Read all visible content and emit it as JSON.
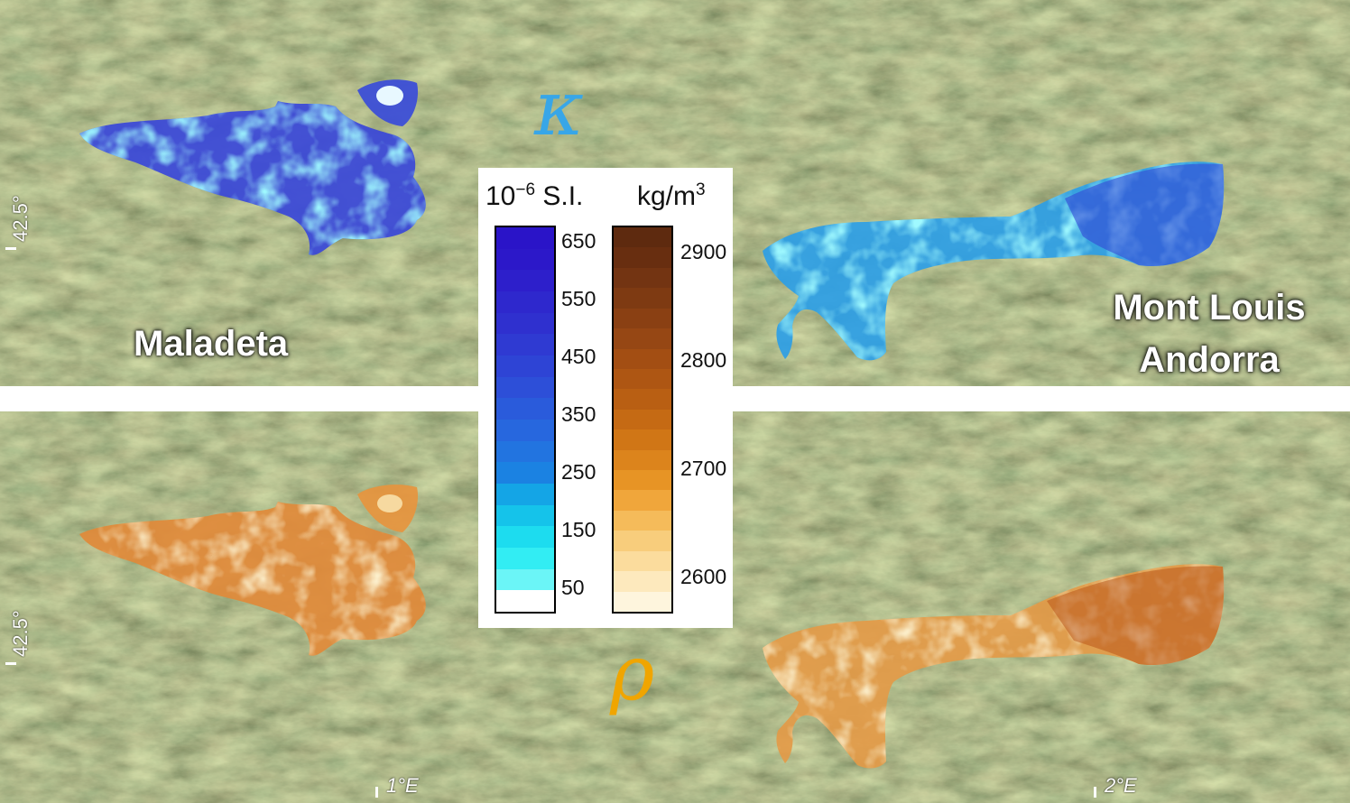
{
  "labels": {
    "maladeta": "Maladeta",
    "mont_louis_line1": "Mont Louis",
    "mont_louis_line2": "Andorra",
    "kappa": "κ",
    "rho": "ρ",
    "lat_top": "42.5°",
    "lat_bottom": "42.5°",
    "lon_1": "1°E",
    "lon_2": "2°E"
  },
  "legend": {
    "kappa_unit_base": "10",
    "kappa_unit_exp": "−6",
    "kappa_unit_suffix": " S.I.",
    "rho_unit_base": "kg/m",
    "rho_unit_exp": "3",
    "kappa_ticks": [
      "650",
      "550",
      "450",
      "350",
      "250",
      "150",
      "50"
    ],
    "rho_ticks": [
      "2900",
      "2800",
      "2700",
      "2600"
    ]
  },
  "colors": {
    "kappa_accent": "#38a6e8",
    "rho_accent": "#f0a500",
    "kappa_scale": [
      "#2a14c8",
      "#2c18c9",
      "#2d1fcb",
      "#2e28cd",
      "#2f30cf",
      "#2f3ad2",
      "#2e44d5",
      "#2d4fd8",
      "#2a5bdb",
      "#2767de",
      "#2274e0",
      "#1b82e2",
      "#14a5e6",
      "#15c3ea",
      "#1ddcef",
      "#32edf3",
      "#6bf5f7",
      "#ffffff"
    ],
    "rho_scale": [
      "#5e2a0f",
      "#682e10",
      "#733412",
      "#7e3a12",
      "#8a4013",
      "#964714",
      "#a34e13",
      "#ae5613",
      "#b95f13",
      "#c56a14",
      "#d07616",
      "#dc841c",
      "#e79425",
      "#f0a63b",
      "#f5bb5a",
      "#f8cd7c",
      "#fbdc9d",
      "#fde9bd",
      "#fef5dd"
    ]
  }
}
